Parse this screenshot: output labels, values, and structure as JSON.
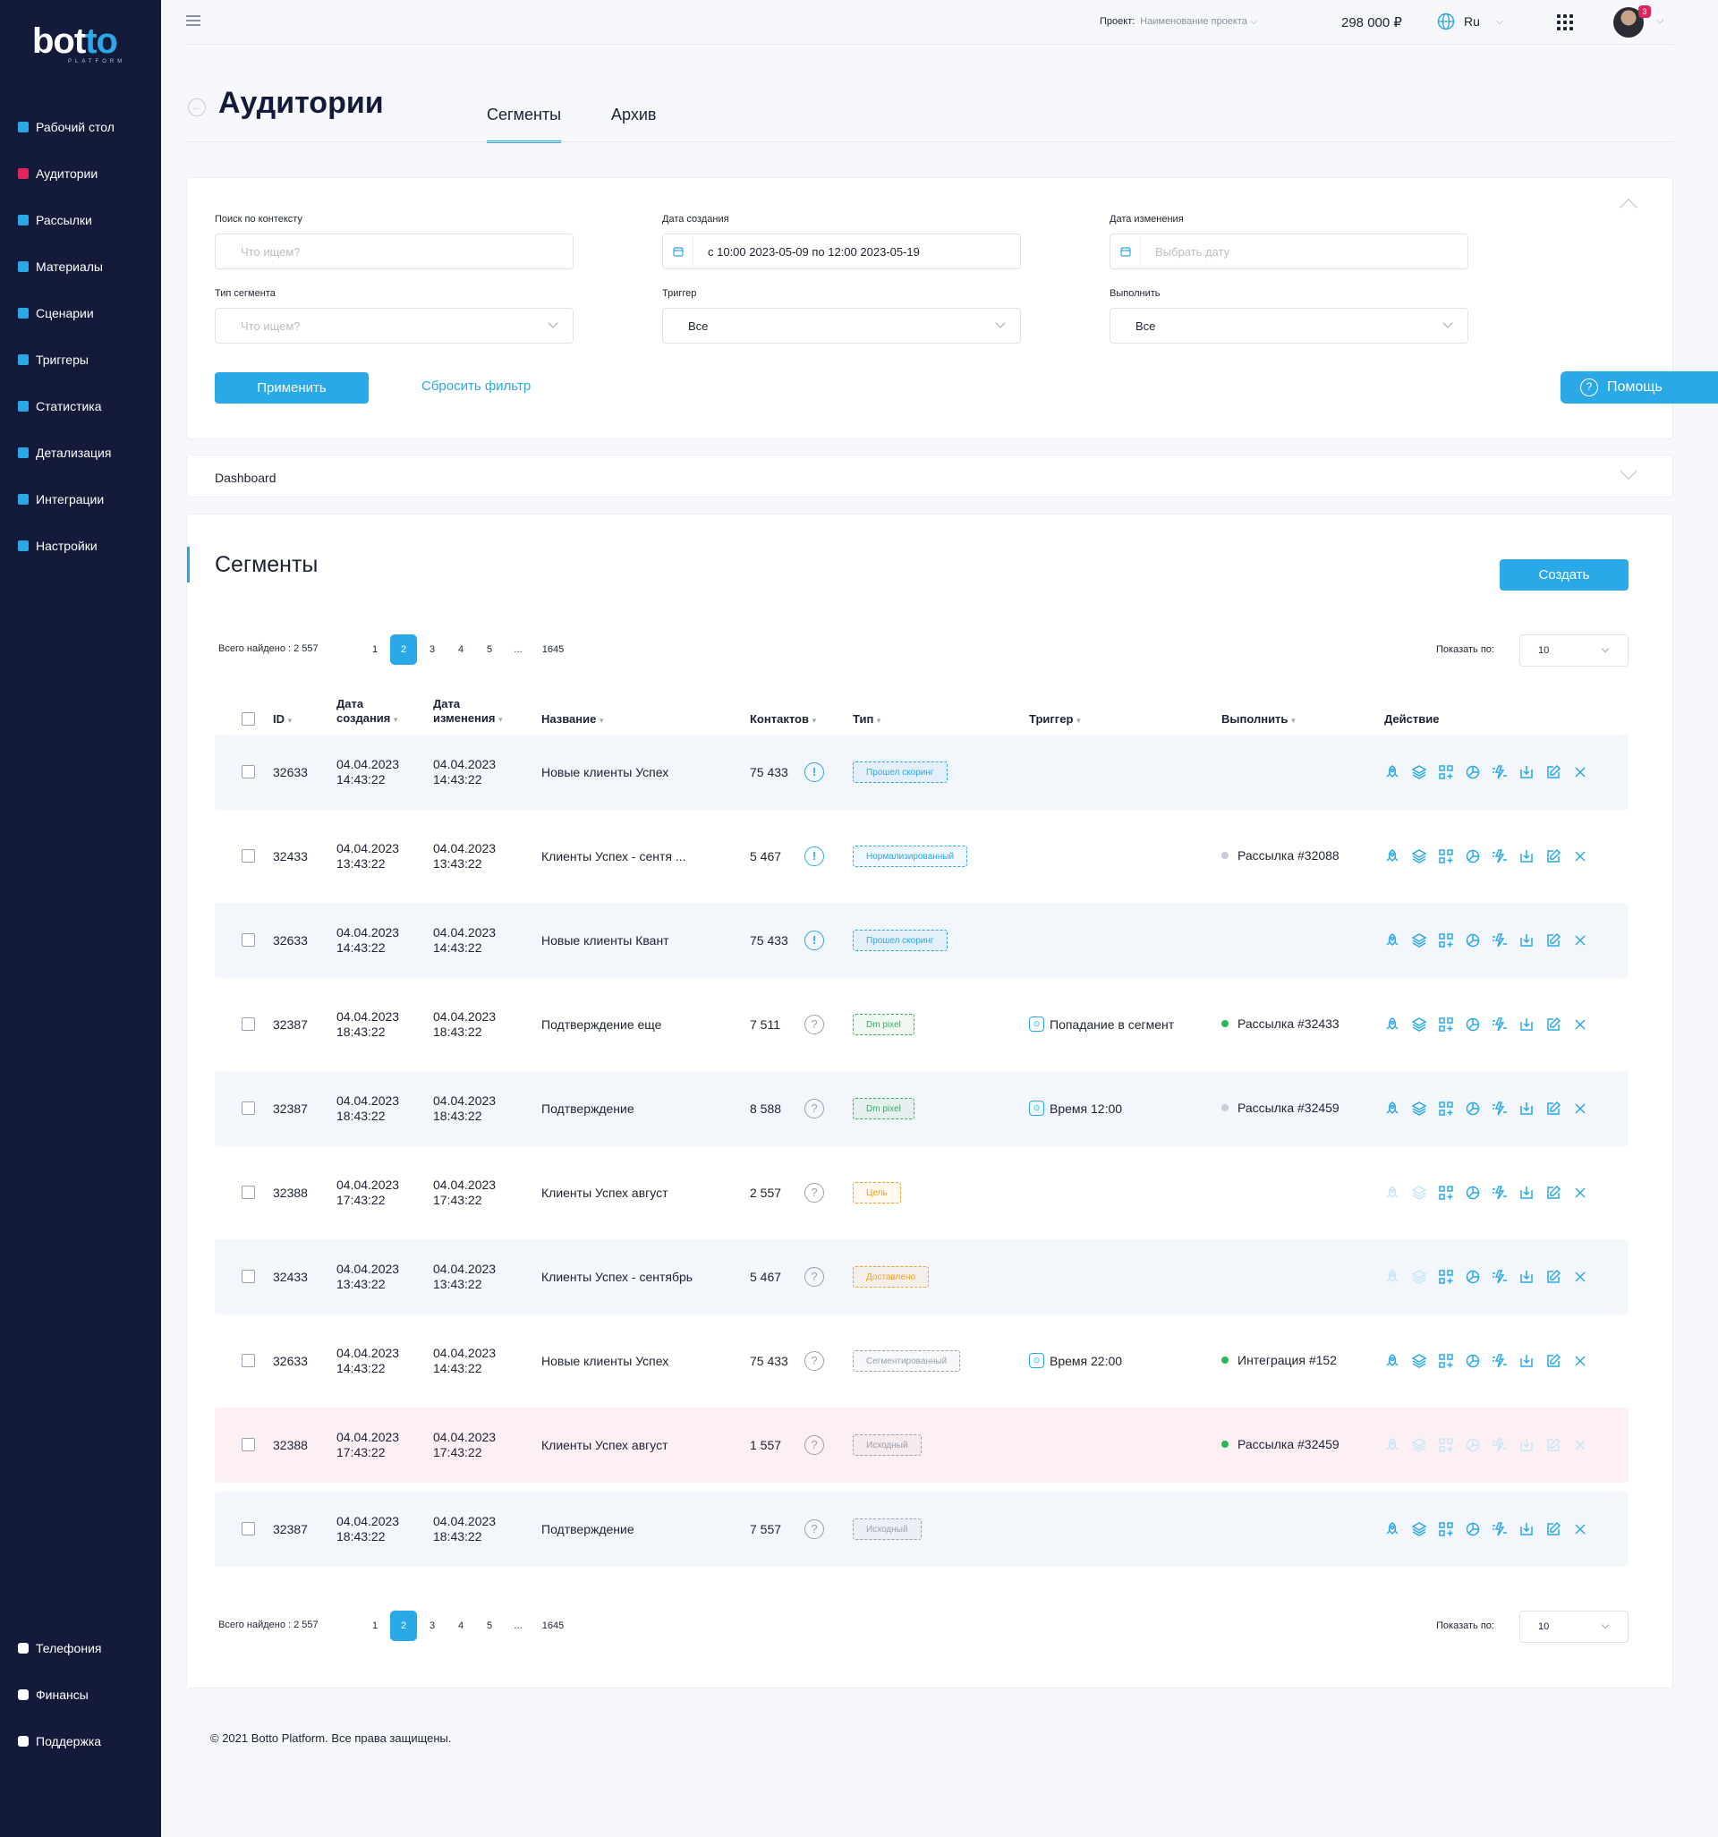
{
  "brand": {
    "logo_main": "bot",
    "logo_accent": "to",
    "logo_sub": "PLATFORM"
  },
  "nav": [
    {
      "label": "Рабочий стол",
      "icon": "dashboard-icon",
      "color": "#2aa8e8"
    },
    {
      "label": "Аудитории",
      "icon": "users-icon",
      "color": "#e0245e"
    },
    {
      "label": "Рассылки",
      "icon": "mail-icon",
      "color": "#2aa8e8"
    },
    {
      "label": "Материалы",
      "icon": "materials-icon",
      "color": "#2aa8e8"
    },
    {
      "label": "Сценарии",
      "icon": "scenarios-icon",
      "color": "#2aa8e8"
    },
    {
      "label": "Триггеры",
      "icon": "lightning-icon",
      "color": "#2aa8e8"
    },
    {
      "label": "Статистика",
      "icon": "chart-icon",
      "color": "#2aa8e8"
    },
    {
      "label": "Детализация",
      "icon": "detail-icon",
      "color": "#2aa8e8"
    },
    {
      "label": "Интеграции",
      "icon": "integrations-icon",
      "color": "#2aa8e8"
    },
    {
      "label": "Настройки",
      "icon": "gear-icon",
      "color": "#2aa8e8"
    }
  ],
  "nav_bottom": [
    {
      "label": "Телефония",
      "icon": "phone-icon"
    },
    {
      "label": "Финансы",
      "icon": "wallet-icon"
    },
    {
      "label": "Поддержка",
      "icon": "support-icon"
    }
  ],
  "topbar": {
    "project_label": "Проект:",
    "project_value": "Наименование проекта",
    "balance": "298 000 ₽",
    "language": "Ru",
    "notifications": "3"
  },
  "page": {
    "title": "Аудитории",
    "tabs": [
      "Сегменты",
      "Архив"
    ]
  },
  "filters": {
    "search_label": "Поиск по контексту",
    "search_placeholder": "Что ищем?",
    "created_label": "Дата создания",
    "created_value": "с 10:00 2023-05-09 по 12:00 2023-05-19",
    "modified_label": "Дата изменения",
    "modified_placeholder": "Выбрать дату",
    "type_label": "Тип сегмента",
    "type_placeholder": "Что ищем?",
    "trigger_label": "Триггер",
    "trigger_value": "Все",
    "exec_label": "Выполнить",
    "exec_value": "Все",
    "apply": "Применить",
    "reset": "Сбросить фильтр"
  },
  "help_label": "Помощь",
  "dashboard_label": "Dashboard",
  "segments": {
    "title": "Сегменты",
    "create": "Создать",
    "total": "Всего найдено : 2 557",
    "pages": [
      "1",
      "2",
      "3",
      "4",
      "5",
      "...",
      "1645"
    ],
    "current_page": "2",
    "show_label": "Показать по:",
    "show_value": "10",
    "headers": {
      "id": "ID",
      "created": "Дата создания",
      "modified": "Дата изменения",
      "name": "Название",
      "contacts": "Контактов",
      "type": "Тип",
      "trigger": "Триггер",
      "exec": "Выполнить",
      "actions": "Действие"
    },
    "rows": [
      {
        "id": "32633",
        "created_d": "04.04.2023",
        "created_t": "14:43:22",
        "modified_d": "04.04.2023",
        "modified_t": "14:43:22",
        "name": "Новые клиенты Успех",
        "contacts": "75 433",
        "status": "!",
        "type": "Прошел скоринг",
        "type_color": "#2aa8e8",
        "trigger": "",
        "exec": "",
        "exec_color": "",
        "bg": "alt",
        "dim": []
      },
      {
        "id": "32433",
        "created_d": "04.04.2023",
        "created_t": "13:43:22",
        "modified_d": "04.04.2023",
        "modified_t": "13:43:22",
        "name": "Клиенты Успех - сентя ...",
        "contacts": "5 467",
        "status": "!",
        "type": "Нормализированный",
        "type_color": "#2aa8e8",
        "trigger": "",
        "exec": "Рассылка #32088",
        "exec_color": "#c9ccd6",
        "bg": "",
        "dim": []
      },
      {
        "id": "32633",
        "created_d": "04.04.2023",
        "created_t": "14:43:22",
        "modified_d": "04.04.2023",
        "modified_t": "14:43:22",
        "name": "Новые клиенты Квант",
        "contacts": "75 433",
        "status": "!",
        "type": "Прошел скоринг",
        "type_color": "#2aa8e8",
        "trigger": "",
        "exec": "",
        "exec_color": "",
        "bg": "alt",
        "dim": []
      },
      {
        "id": "32387",
        "created_d": "04.04.2023",
        "created_t": "18:43:22",
        "modified_d": "04.04.2023",
        "modified_t": "18:43:22",
        "name": "Подтверждение еще",
        "contacts": "7 511",
        "status": "?",
        "type": "Dm pixel",
        "type_color": "#2fb35a",
        "trigger": "Попадание в сегмент",
        "exec": "Рассылка #32433",
        "exec_color": "#2fb35a",
        "bg": "",
        "dim": []
      },
      {
        "id": "32387",
        "created_d": "04.04.2023",
        "created_t": "18:43:22",
        "modified_d": "04.04.2023",
        "modified_t": "18:43:22",
        "name": "Подтверждение",
        "contacts": "8 588",
        "status": "?",
        "type": "Dm pixel",
        "type_color": "#2fb35a",
        "trigger": "Время 12:00",
        "exec": "Рассылка #32459",
        "exec_color": "#c9ccd6",
        "bg": "alt",
        "dim": []
      },
      {
        "id": "32388",
        "created_d": "04.04.2023",
        "created_t": "17:43:22",
        "modified_d": "04.04.2023",
        "modified_t": "17:43:22",
        "name": "Клиенты Успех август",
        "contacts": "2 557",
        "status": "?",
        "type": "Цель",
        "type_color": "#f0a020",
        "trigger": "",
        "exec": "",
        "exec_color": "",
        "bg": "",
        "dim": [
          0,
          1
        ]
      },
      {
        "id": "32433",
        "created_d": "04.04.2023",
        "created_t": "13:43:22",
        "modified_d": "04.04.2023",
        "modified_t": "13:43:22",
        "name": "Клиенты Успех - сентябрь",
        "contacts": "5 467",
        "status": "?",
        "type": "Доставлено",
        "type_color": "#f0a020",
        "trigger": "",
        "exec": "",
        "exec_color": "",
        "bg": "alt",
        "dim": [
          0,
          1
        ]
      },
      {
        "id": "32633",
        "created_d": "04.04.2023",
        "created_t": "14:43:22",
        "modified_d": "04.04.2023",
        "modified_t": "14:43:22",
        "name": "Новые клиенты Успех",
        "contacts": "75 433",
        "status": "?",
        "type": "Сегментированный",
        "type_color": "#9aa0ad",
        "trigger": "Время 22:00",
        "exec": "Интеграция #152",
        "exec_color": "#2fb35a",
        "bg": "",
        "dim": []
      },
      {
        "id": "32388",
        "created_d": "04.04.2023",
        "created_t": "17:43:22",
        "modified_d": "04.04.2023",
        "modified_t": "17:43:22",
        "name": "Клиенты Успех август",
        "contacts": "1 557",
        "status": "?",
        "type": "Исходный",
        "type_color": "#9aa0ad",
        "trigger": "",
        "exec": "Рассылка #32459",
        "exec_color": "#2fb35a",
        "bg": "warn",
        "dim": [
          0,
          1,
          2,
          3,
          4,
          5,
          6,
          7
        ]
      },
      {
        "id": "32387",
        "created_d": "04.04.2023",
        "created_t": "18:43:22",
        "modified_d": "04.04.2023",
        "modified_t": "18:43:22",
        "name": "Подтверждение",
        "contacts": "7 557",
        "status": "?",
        "type": "Исходный",
        "type_color": "#9aa0ad",
        "trigger": "",
        "exec": "",
        "exec_color": "",
        "bg": "alt",
        "dim": []
      }
    ],
    "action_icons": [
      "rocket-icon",
      "layers-icon",
      "add-widget-icon",
      "pie-chart-icon",
      "lightning-list-icon",
      "download-icon",
      "edit-icon",
      "close-icon"
    ]
  },
  "footer": "© 2021 Botto Platform. Все права защищены."
}
